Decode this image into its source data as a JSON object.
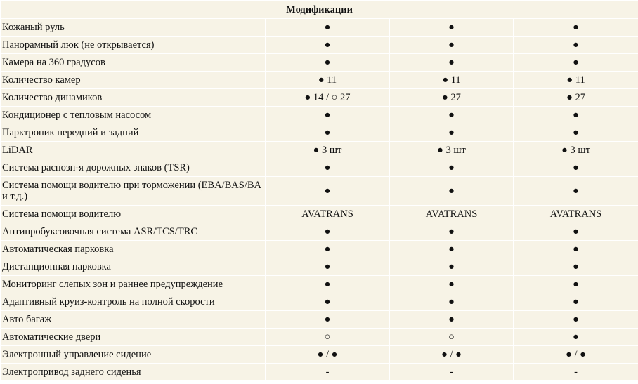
{
  "header": {
    "title": "Модификации"
  },
  "rows": [
    {
      "feature": "Кожаный руль",
      "values": [
        "●",
        "●",
        "●"
      ]
    },
    {
      "feature": "Панорамный люк (не открывается)",
      "values": [
        "●",
        "●",
        "●"
      ]
    },
    {
      "feature": "Камера на 360 градусов",
      "values": [
        "●",
        "●",
        "●"
      ]
    },
    {
      "feature": "Количество камер",
      "values": [
        "● 11",
        "● 11",
        "● 11"
      ]
    },
    {
      "feature": "Количество динамиков",
      "values": [
        "● 14 / ○ 27",
        "● 27",
        "● 27"
      ]
    },
    {
      "feature": "Кондиционер с тепловым насосом",
      "values": [
        "●",
        "●",
        "●"
      ]
    },
    {
      "feature": "Парктроник передний и задний",
      "values": [
        "●",
        "●",
        "●"
      ]
    },
    {
      "feature": "LiDAR",
      "values": [
        "● 3 шт",
        "● 3 шт",
        "● 3 шт"
      ]
    },
    {
      "feature": "Система распозн-я дорожных знаков (TSR)",
      "values": [
        "●",
        "●",
        "●"
      ]
    },
    {
      "feature": "Система помощи водителю при торможении (EBA/BAS/BA и т.д.)",
      "values": [
        "●",
        "●",
        "●"
      ]
    },
    {
      "feature": "Система помощи водителю",
      "values": [
        "AVATRANS",
        "AVATRANS",
        "AVATRANS"
      ]
    },
    {
      "feature": "Антипробуксовочная система ASR/TCS/TRC",
      "values": [
        "●",
        "●",
        "●"
      ]
    },
    {
      "feature": "Автоматическая парковка",
      "values": [
        "●",
        "●",
        "●"
      ]
    },
    {
      "feature": "Дистанционная парковка",
      "values": [
        "●",
        "●",
        "●"
      ]
    },
    {
      "feature": "Мониторинг слепых зон и раннее предупреждение",
      "values": [
        "●",
        "●",
        "●"
      ]
    },
    {
      "feature": "Адаптивный круиз-контроль на полной скорости",
      "values": [
        "●",
        "●",
        "●"
      ]
    },
    {
      "feature": "Авто багаж",
      "values": [
        "●",
        "●",
        "●"
      ]
    },
    {
      "feature": "Автоматические двери",
      "values": [
        "○",
        "○",
        "●"
      ]
    },
    {
      "feature": "Электронный управление сидение",
      "values": [
        "● / ●",
        "● / ●",
        "● / ●"
      ]
    },
    {
      "feature": "Электропривод заднего сиденья",
      "values": [
        "-",
        "-",
        "-"
      ]
    }
  ],
  "colors": {
    "cell_background": "#f7f3e6",
    "grid_lines": "#ffffff",
    "text": "#111111"
  }
}
